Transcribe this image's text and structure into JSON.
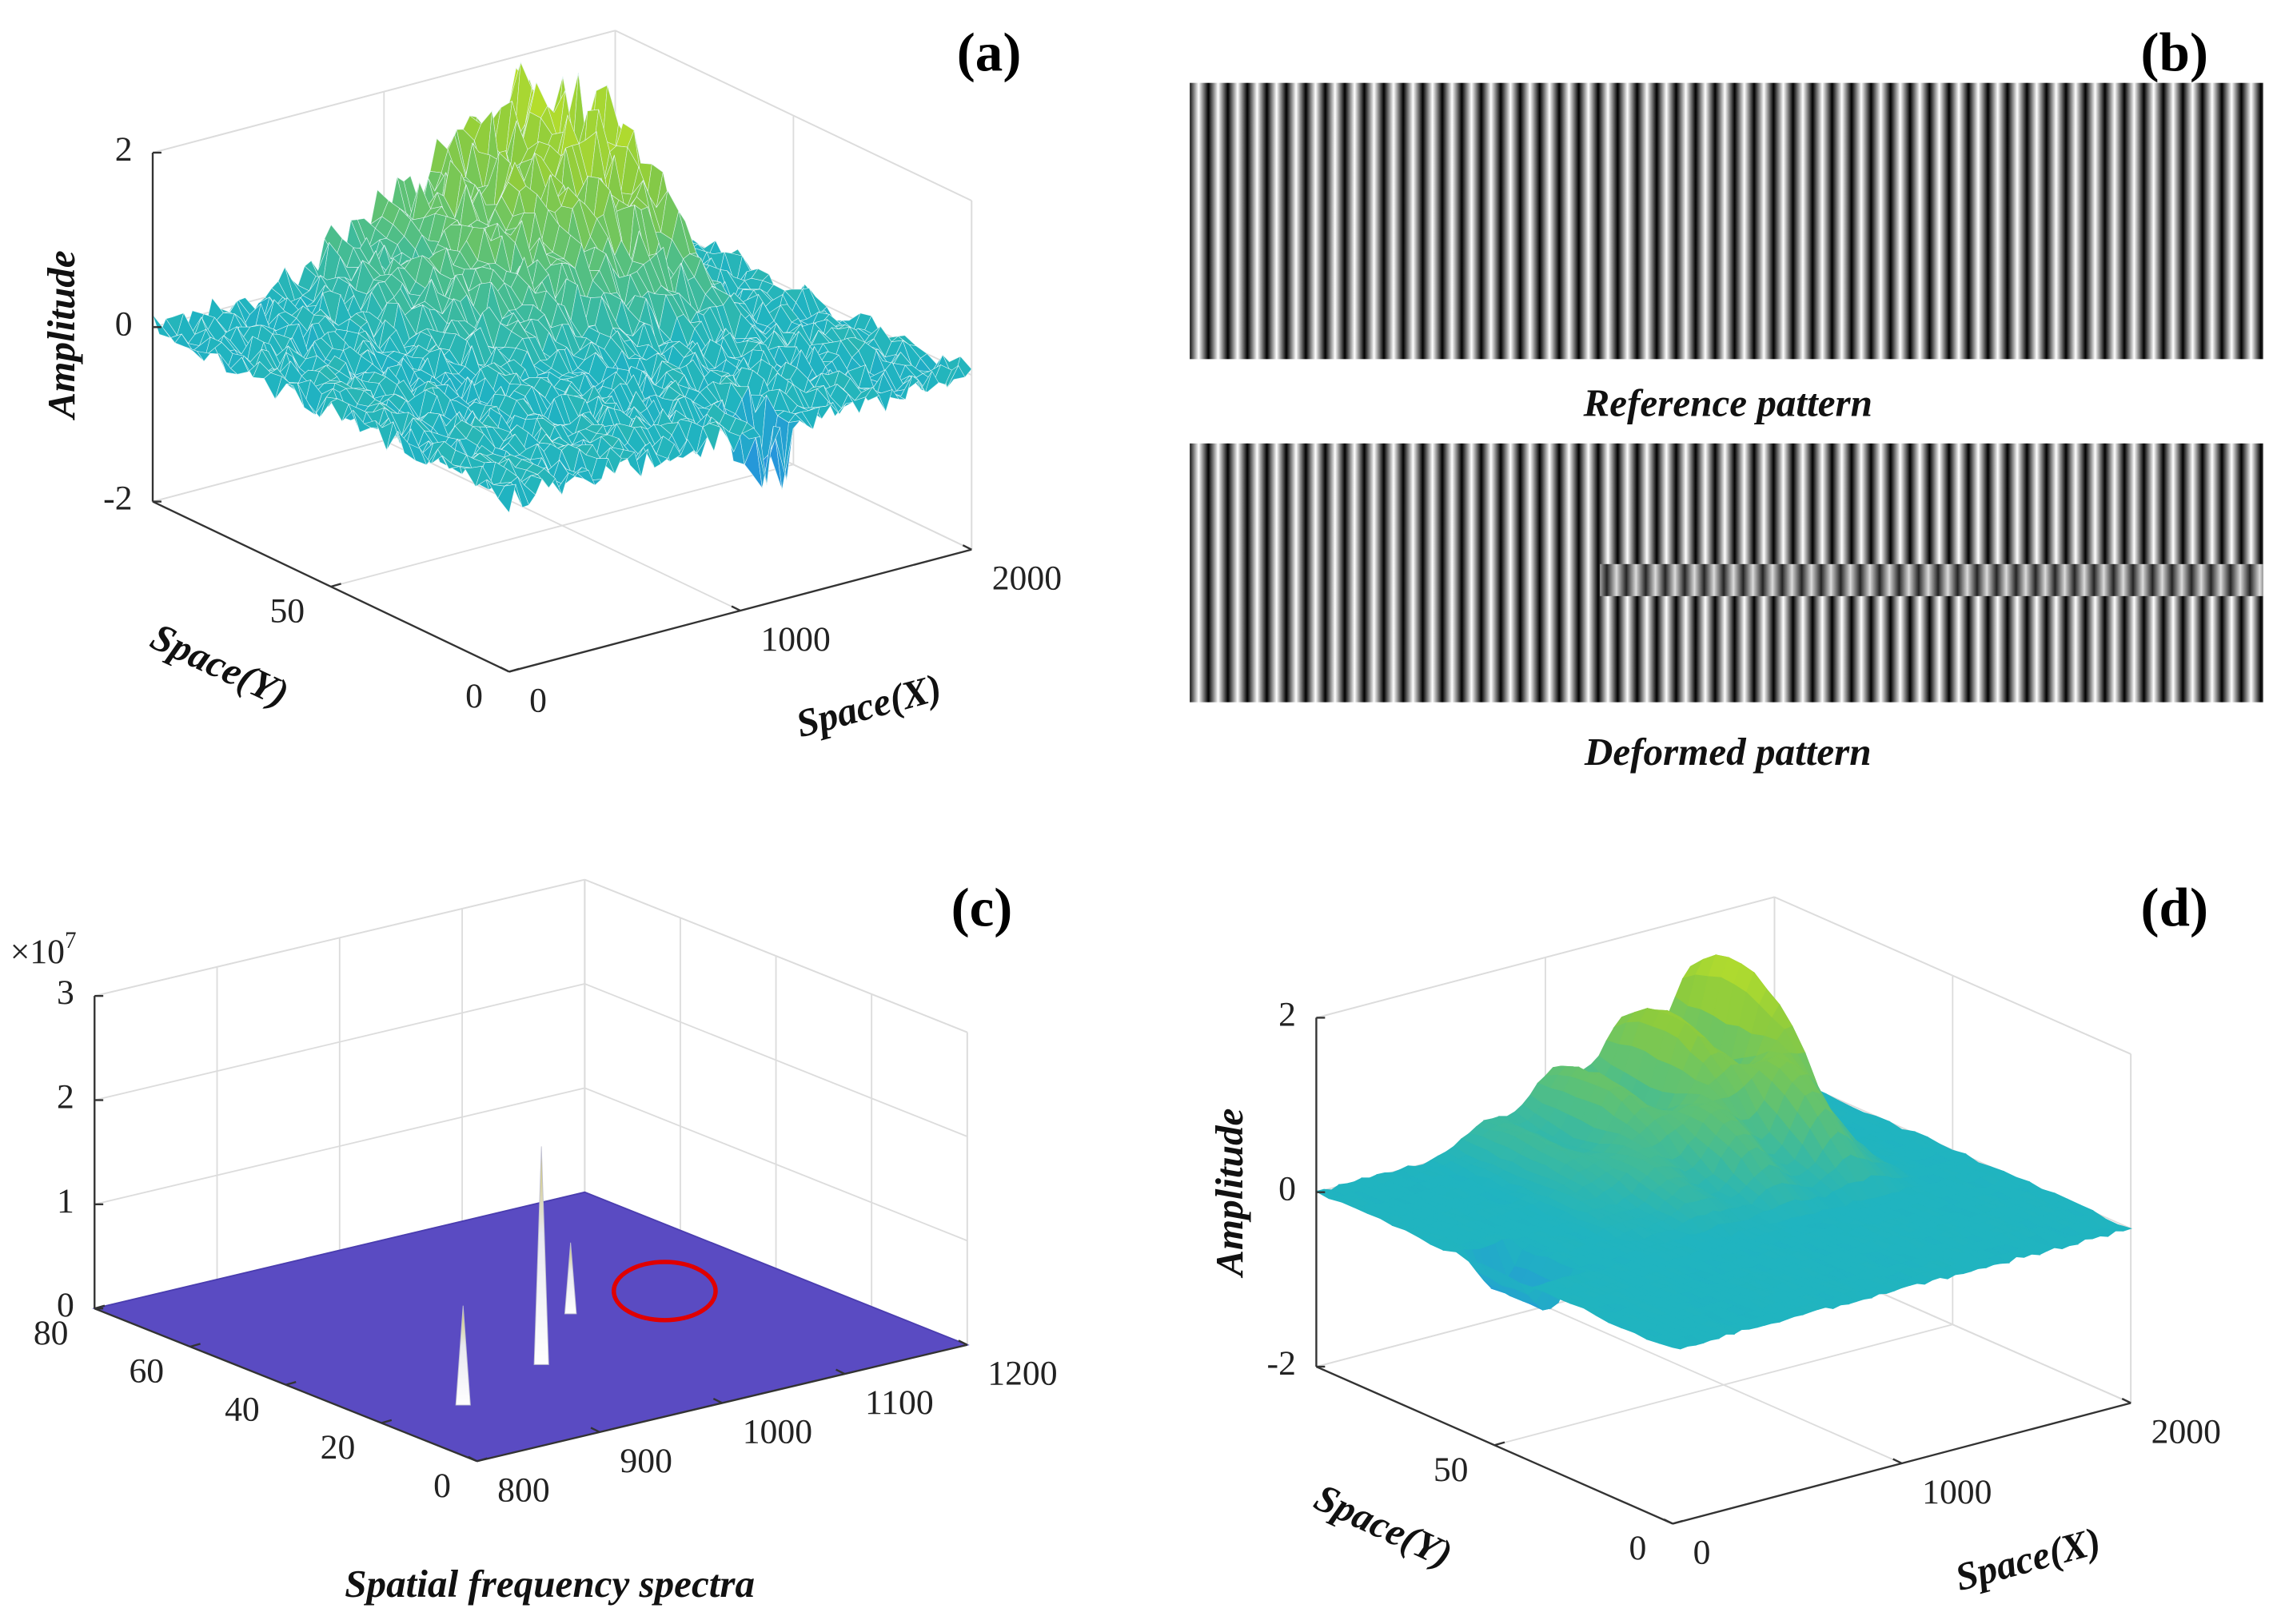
{
  "chart_data": [
    {
      "type": "surface3d",
      "panel": "(a)",
      "zlabel": "Amplitude",
      "xlabel": "Space(X)",
      "ylabel": "Space(Y)",
      "xlim": [
        0,
        2000
      ],
      "xticks": [
        0,
        1000,
        2000
      ],
      "ylim": [
        0,
        100
      ],
      "yticks": [
        0,
        50
      ],
      "zlim": [
        -2,
        2
      ],
      "zticks": [
        -2,
        0,
        2
      ]
    },
    {
      "type": "fringe",
      "panel": "(b)",
      "patterns": [
        "Reference pattern",
        "Deformed pattern"
      ]
    },
    {
      "type": "spectrum3d",
      "panel": "(c)",
      "title": "Spatial frequency spectra",
      "xlim": [
        800,
        1200
      ],
      "xticks": [
        800,
        900,
        1000,
        1100,
        1200
      ],
      "ylim": [
        0,
        80
      ],
      "yticks": [
        0,
        20,
        40,
        60,
        80
      ],
      "zlim": [
        0,
        30000000
      ],
      "zticks": [
        {
          "value": 0,
          "label": "0"
        },
        {
          "value": 10000000,
          "label": "1"
        },
        {
          "value": 20000000,
          "label": "2"
        },
        {
          "value": 30000000,
          "label": "3"
        }
      ],
      "zmultiplier": {
        "base": "×10",
        "exponent": "7"
      }
    },
    {
      "type": "surface3d",
      "panel": "(d)",
      "zlabel": "Amplitude",
      "xlabel": "Space(X)",
      "ylabel": "Space(Y)",
      "xlim": [
        0,
        2000
      ],
      "xticks": [
        0,
        1000,
        2000
      ],
      "ylim": [
        0,
        100
      ],
      "yticks": [
        0,
        50
      ],
      "zlim": [
        -2,
        2
      ],
      "zticks": [
        -2,
        0,
        2
      ]
    }
  ]
}
